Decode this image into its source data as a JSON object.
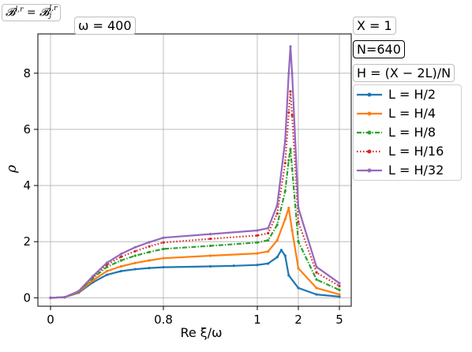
{
  "annotations": {
    "title_formula": "B^{l,r} = B_j^{l,r}",
    "title_lhs": "𝓑",
    "title_lhs_sup": "l,r",
    "title_eq": "=",
    "title_rhs": "𝓑",
    "title_rhs_sup": "l,r",
    "title_rhs_sub": "j",
    "omega": "ω = 400",
    "x_param": "X = 1",
    "n_param": "N=640",
    "h_param": "H = (X − 2L)/N"
  },
  "chart_data": {
    "type": "line",
    "xlabel": "Re ξ/ω",
    "ylabel": "ρ",
    "x_tick_labels": [
      "0",
      "0.8",
      "1",
      "2",
      "5"
    ],
    "y_ticks": [
      0,
      2,
      4,
      6,
      8
    ],
    "ylim": [
      -0.3,
      9.4
    ],
    "grid": true,
    "legend_position": "right",
    "series": [
      {
        "name": "L = H/2",
        "color": "#1f77b4",
        "marker": "dot",
        "linestyle": "solid",
        "points": [
          [
            0,
            0
          ],
          [
            0.1,
            0.02
          ],
          [
            0.2,
            0.18
          ],
          [
            0.3,
            0.55
          ],
          [
            0.4,
            0.82
          ],
          [
            0.5,
            0.95
          ],
          [
            0.6,
            1.02
          ],
          [
            0.7,
            1.06
          ],
          [
            0.8,
            1.09
          ],
          [
            0.9,
            1.12
          ],
          [
            0.95,
            1.14
          ],
          [
            1.0,
            1.17
          ],
          [
            1.2,
            1.22
          ],
          [
            1.4,
            1.45
          ],
          [
            1.5,
            1.7
          ],
          [
            1.6,
            1.5
          ],
          [
            1.7,
            0.8
          ],
          [
            2.0,
            0.35
          ],
          [
            3.0,
            0.12
          ],
          [
            5.0,
            0.04
          ]
        ]
      },
      {
        "name": "L = H/4",
        "color": "#ff7f0e",
        "marker": "dot",
        "linestyle": "solid",
        "points": [
          [
            0,
            0
          ],
          [
            0.1,
            0.02
          ],
          [
            0.2,
            0.2
          ],
          [
            0.3,
            0.62
          ],
          [
            0.4,
            0.95
          ],
          [
            0.5,
            1.12
          ],
          [
            0.6,
            1.24
          ],
          [
            0.7,
            1.33
          ],
          [
            0.8,
            1.41
          ],
          [
            0.9,
            1.5
          ],
          [
            1.0,
            1.58
          ],
          [
            1.2,
            1.65
          ],
          [
            1.4,
            2.05
          ],
          [
            1.6,
            2.8
          ],
          [
            1.7,
            3.2
          ],
          [
            1.8,
            2.4
          ],
          [
            2.0,
            1.05
          ],
          [
            3.0,
            0.35
          ],
          [
            5.0,
            0.12
          ]
        ]
      },
      {
        "name": "L = H/8",
        "color": "#2ca02c",
        "marker": "dot",
        "linestyle": "dashdot",
        "points": [
          [
            0,
            0
          ],
          [
            0.1,
            0.02
          ],
          [
            0.2,
            0.22
          ],
          [
            0.3,
            0.7
          ],
          [
            0.4,
            1.1
          ],
          [
            0.5,
            1.33
          ],
          [
            0.6,
            1.5
          ],
          [
            0.7,
            1.63
          ],
          [
            0.8,
            1.74
          ],
          [
            0.9,
            1.85
          ],
          [
            1.0,
            1.97
          ],
          [
            1.2,
            2.05
          ],
          [
            1.4,
            2.6
          ],
          [
            1.6,
            3.8
          ],
          [
            1.7,
            4.9
          ],
          [
            1.75,
            5.3
          ],
          [
            1.8,
            4.6
          ],
          [
            2.0,
            2.0
          ],
          [
            3.0,
            0.65
          ],
          [
            5.0,
            0.28
          ]
        ]
      },
      {
        "name": "L = H/16",
        "color": "#d62728",
        "marker": "dot",
        "linestyle": "dotted",
        "points": [
          [
            0,
            0
          ],
          [
            0.1,
            0.02
          ],
          [
            0.2,
            0.23
          ],
          [
            0.3,
            0.74
          ],
          [
            0.4,
            1.18
          ],
          [
            0.5,
            1.46
          ],
          [
            0.6,
            1.66
          ],
          [
            0.7,
            1.83
          ],
          [
            0.8,
            1.97
          ],
          [
            0.9,
            2.1
          ],
          [
            1.0,
            2.22
          ],
          [
            1.2,
            2.3
          ],
          [
            1.4,
            3.0
          ],
          [
            1.6,
            4.8
          ],
          [
            1.7,
            6.6
          ],
          [
            1.75,
            7.35
          ],
          [
            1.8,
            6.5
          ],
          [
            2.0,
            2.7
          ],
          [
            3.0,
            0.9
          ],
          [
            5.0,
            0.42
          ]
        ]
      },
      {
        "name": "L = H/32",
        "color": "#9467bd",
        "marker": "dot",
        "linestyle": "solid",
        "points": [
          [
            0,
            0
          ],
          [
            0.1,
            0.02
          ],
          [
            0.2,
            0.24
          ],
          [
            0.3,
            0.77
          ],
          [
            0.4,
            1.25
          ],
          [
            0.5,
            1.56
          ],
          [
            0.6,
            1.8
          ],
          [
            0.7,
            1.98
          ],
          [
            0.8,
            2.14
          ],
          [
            0.9,
            2.27
          ],
          [
            1.0,
            2.4
          ],
          [
            1.2,
            2.48
          ],
          [
            1.4,
            3.3
          ],
          [
            1.6,
            5.6
          ],
          [
            1.7,
            8.0
          ],
          [
            1.75,
            8.95
          ],
          [
            1.8,
            8.0
          ],
          [
            2.0,
            3.2
          ],
          [
            3.0,
            1.1
          ],
          [
            5.0,
            0.52
          ]
        ]
      }
    ]
  }
}
